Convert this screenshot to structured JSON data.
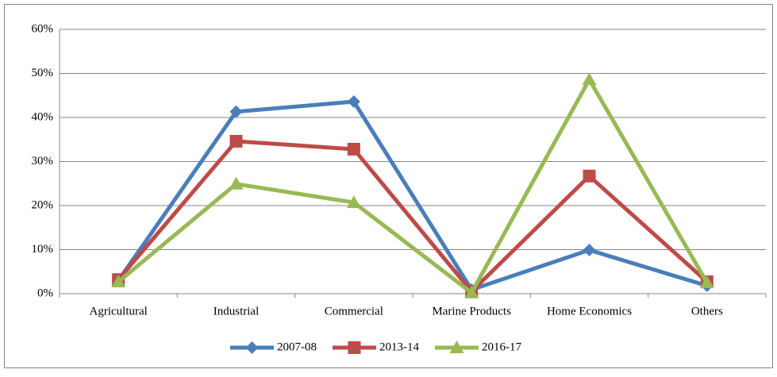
{
  "chart_data": {
    "type": "line",
    "categories": [
      "Agricultural",
      "Industrial",
      "Commercial",
      "Marine Products",
      "Home Economics",
      "Others"
    ],
    "series": [
      {
        "name": "2007-08",
        "color": "#4a7ebb",
        "marker": "diamond",
        "values": [
          3,
          41.3,
          43.6,
          0.9,
          9.9,
          1.8
        ]
      },
      {
        "name": "2013-14",
        "color": "#be4b48",
        "marker": "square",
        "values": [
          3.2,
          34.6,
          32.8,
          0.5,
          26.7,
          2.7
        ]
      },
      {
        "name": "2016-17",
        "color": "#98b954",
        "marker": "triangle",
        "values": [
          2.7,
          24.9,
          20.7,
          0.2,
          48.6,
          2.5
        ]
      }
    ],
    "ylim": [
      0,
      60
    ],
    "yticks": [
      {
        "value": 0,
        "label": "0%"
      },
      {
        "value": 10,
        "label": "10%"
      },
      {
        "value": 20,
        "label": "20%"
      },
      {
        "value": 30,
        "label": "30%"
      },
      {
        "value": 40,
        "label": "40%"
      },
      {
        "value": 50,
        "label": "50%"
      },
      {
        "value": 60,
        "label": "60%"
      }
    ],
    "grid": true,
    "legend": "bottom"
  }
}
